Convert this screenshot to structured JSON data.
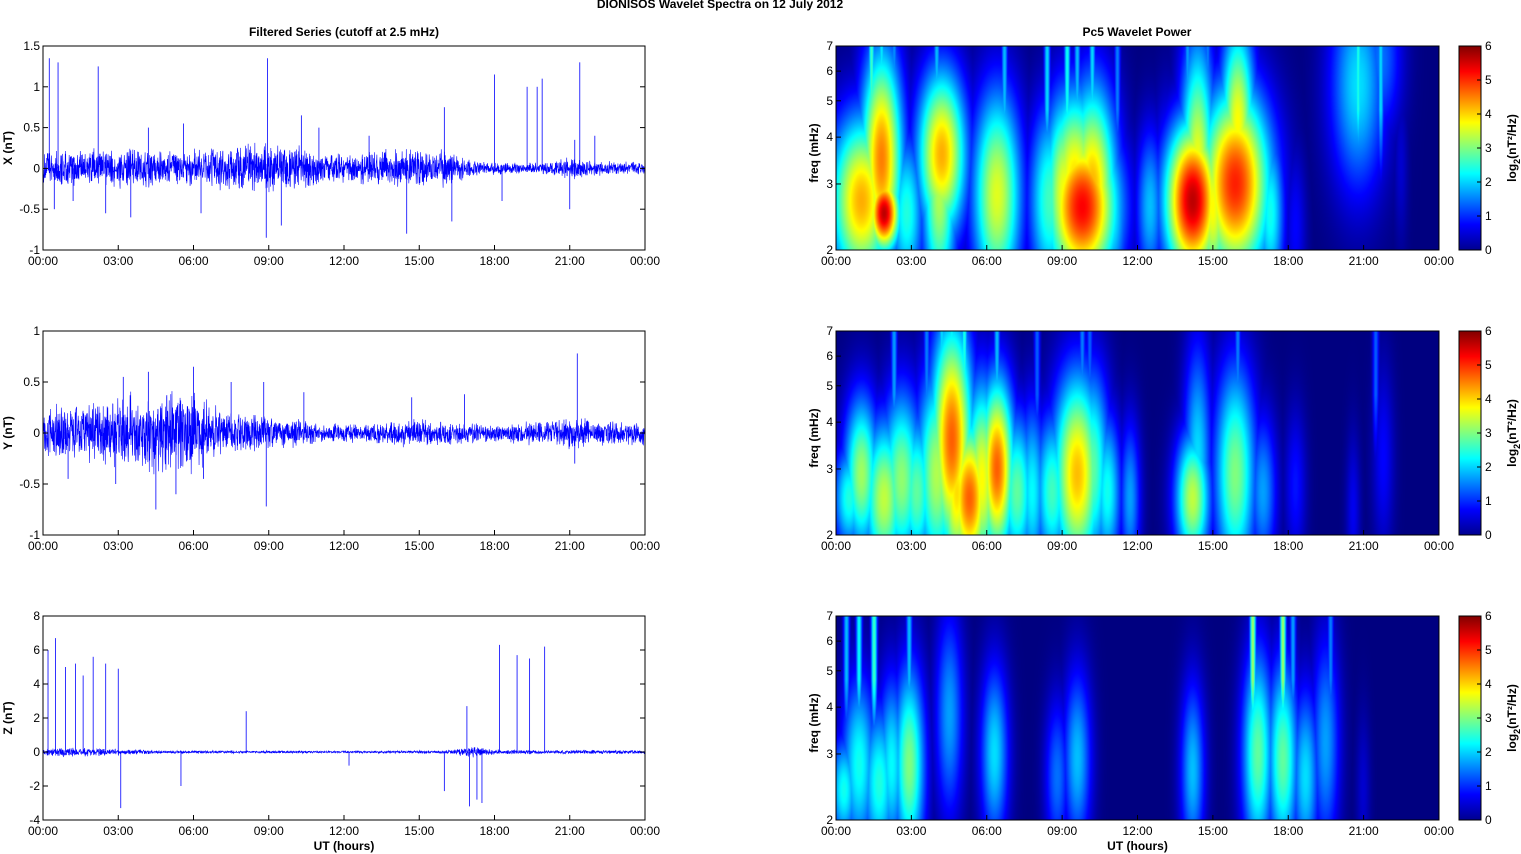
{
  "figure_title": "DIONISOS Wavelet Spectra on 12 July      2012",
  "left_column_title": "Filtered Series (cutoff at 2.5 mHz)",
  "right_column_title": "Pc5 Wavelet Power",
  "colors": {
    "trace": "#0000ff",
    "spectrum_background": "#00008f"
  },
  "chart_data": [
    {
      "type": "line",
      "title": "Filtered Series (cutoff at 2.5 mHz)",
      "xlabel": "",
      "ylabel": "X (nT)",
      "xlim": [
        "00:00",
        "00:00"
      ],
      "ylim": [
        -1,
        1.5
      ],
      "x_ticks": [
        "00:00",
        "03:00",
        "06:00",
        "09:00",
        "12:00",
        "15:00",
        "18:00",
        "21:00",
        "00:00"
      ],
      "y_ticks": [
        "-1",
        "-0.5",
        "0",
        "0.5",
        "1",
        "1.5"
      ],
      "grid": false,
      "series": [
        {
          "noise_amplitude": [
            [
              0,
              0.18
            ],
            [
              3,
              0.22
            ],
            [
              6,
              0.2
            ],
            [
              9,
              0.28
            ],
            [
              12,
              0.15
            ],
            [
              14.5,
              0.22
            ],
            [
              16,
              0.2
            ],
            [
              17.5,
              0.07
            ],
            [
              20,
              0.06
            ],
            [
              21,
              0.12
            ],
            [
              22,
              0.08
            ],
            [
              24,
              0.06
            ]
          ],
          "spikes": [
            [
              0.25,
              1.35
            ],
            [
              0.45,
              -0.5
            ],
            [
              0.6,
              1.3
            ],
            [
              1.2,
              -0.4
            ],
            [
              2.2,
              1.25
            ],
            [
              2.5,
              -0.55
            ],
            [
              3.5,
              -0.6
            ],
            [
              4.2,
              0.5
            ],
            [
              5.6,
              0.55
            ],
            [
              6.3,
              -0.55
            ],
            [
              8.95,
              1.35
            ],
            [
              8.9,
              -0.85
            ],
            [
              9.5,
              -0.7
            ],
            [
              10.3,
              0.65
            ],
            [
              11,
              0.5
            ],
            [
              13,
              0.4
            ],
            [
              14.5,
              -0.8
            ],
            [
              16,
              0.75
            ],
            [
              16.3,
              -0.65
            ],
            [
              18,
              1.15
            ],
            [
              18.3,
              -0.4
            ],
            [
              19.3,
              1.0
            ],
            [
              19.7,
              1.0
            ],
            [
              19.9,
              1.1
            ],
            [
              21.0,
              -0.5
            ],
            [
              21.4,
              1.3
            ],
            [
              21.2,
              0.35
            ],
            [
              22.0,
              0.4
            ]
          ]
        }
      ]
    },
    {
      "type": "heatmap",
      "title": "Pc5 Wavelet Power",
      "xlabel": "",
      "ylabel": "freq (mHz)",
      "colorbar_label": "log2(nT²/Hz)",
      "xlim": [
        "00:00",
        "00:00"
      ],
      "ylim": [
        2,
        7
      ],
      "y_scale": "log",
      "clim": [
        0,
        6
      ],
      "x_ticks": [
        "00:00",
        "03:00",
        "06:00",
        "09:00",
        "12:00",
        "15:00",
        "18:00",
        "21:00",
        "00:00"
      ],
      "y_ticks": [
        "2",
        "3",
        "4",
        "5",
        "6",
        "7"
      ],
      "colorbar_ticks": [
        "0",
        "1",
        "2",
        "3",
        "4",
        "5",
        "6"
      ],
      "blobs": [
        [
          0.5,
          2.4,
          3.2,
          1.4,
          0.5
        ],
        [
          1.0,
          2.7,
          4.5,
          2.1,
          0.9
        ],
        [
          1.45,
          2.6,
          3.1,
          2.5,
          0.7
        ],
        [
          1.9,
          2.5,
          6.0,
          1.4,
          0.45
        ],
        [
          1.8,
          3.5,
          4.8,
          2.6,
          0.6
        ],
        [
          2.8,
          2.5,
          2.6,
          2.0,
          0.5
        ],
        [
          4.1,
          2.8,
          3.5,
          2.6,
          0.5
        ],
        [
          4.2,
          3.6,
          4.5,
          2.1,
          0.7
        ],
        [
          6.4,
          2.8,
          3.8,
          2.5,
          0.7
        ],
        [
          7.0,
          2.4,
          1.3,
          2.0,
          0.45
        ],
        [
          8.5,
          2.7,
          2.8,
          2.3,
          0.6
        ],
        [
          9.1,
          2.8,
          4.0,
          2.4,
          0.6
        ],
        [
          9.5,
          3.1,
          4.2,
          2.2,
          0.8
        ],
        [
          9.8,
          2.6,
          5.6,
          2.0,
          1.0
        ],
        [
          10.2,
          2.9,
          4.5,
          2.5,
          0.7
        ],
        [
          10.9,
          2.5,
          2.5,
          2.0,
          0.5
        ],
        [
          12.5,
          2.6,
          2.0,
          2.0,
          0.4
        ],
        [
          13.2,
          2.7,
          1.8,
          2.2,
          0.4
        ],
        [
          14.2,
          2.7,
          6.0,
          2.0,
          0.8
        ],
        [
          14.4,
          3.2,
          4.0,
          3.2,
          0.5
        ],
        [
          15.0,
          2.6,
          4.0,
          2.2,
          0.5
        ],
        [
          15.9,
          3.0,
          5.4,
          2.3,
          1.0
        ],
        [
          16.0,
          4.3,
          4.0,
          2.5,
          0.5
        ],
        [
          17.3,
          2.5,
          2.5,
          2.1,
          0.4
        ],
        [
          18.3,
          2.3,
          0.8,
          2.0,
          0.3
        ],
        [
          20.8,
          5.5,
          2.2,
          2.6,
          0.8
        ],
        [
          21.7,
          6.5,
          1.5,
          2.0,
          0.6
        ],
        [
          22.5,
          3.4,
          0.5,
          2.0,
          0.2
        ]
      ],
      "streaks": [
        [
          1.4,
          2.8
        ],
        [
          1.8,
          2.3
        ],
        [
          2.3,
          1.7
        ],
        [
          4.0,
          2.0
        ],
        [
          6.7,
          2.0
        ],
        [
          8.4,
          2.2
        ],
        [
          9.2,
          2.5
        ],
        [
          9.6,
          2.0
        ],
        [
          10.2,
          2.2
        ],
        [
          11.2,
          1.6
        ],
        [
          14.0,
          1.8
        ],
        [
          14.8,
          1.6
        ],
        [
          15.9,
          2.2
        ],
        [
          20.8,
          2.6
        ],
        [
          21.7,
          2.2
        ]
      ]
    },
    {
      "type": "line",
      "title": "",
      "xlabel": "",
      "ylabel": "Y (nT)",
      "xlim": [
        "00:00",
        "00:00"
      ],
      "ylim": [
        -1,
        1
      ],
      "x_ticks": [
        "00:00",
        "03:00",
        "06:00",
        "09:00",
        "12:00",
        "15:00",
        "18:00",
        "21:00",
        "00:00"
      ],
      "y_ticks": [
        "-1",
        "-0.5",
        "0",
        "0.5",
        "1"
      ],
      "grid": false,
      "series": [
        {
          "noise_amplitude": [
            [
              0,
              0.22
            ],
            [
              2,
              0.25
            ],
            [
              4,
              0.35
            ],
            [
              6,
              0.35
            ],
            [
              7,
              0.2
            ],
            [
              9,
              0.15
            ],
            [
              11,
              0.08
            ],
            [
              13,
              0.08
            ],
            [
              14.5,
              0.12
            ],
            [
              16,
              0.1
            ],
            [
              18,
              0.08
            ],
            [
              20,
              0.1
            ],
            [
              21,
              0.14
            ],
            [
              22,
              0.1
            ],
            [
              24,
              0.1
            ]
          ],
          "spikes": [
            [
              1.0,
              -0.45
            ],
            [
              2.9,
              -0.5
            ],
            [
              3.2,
              0.55
            ],
            [
              4.2,
              0.6
            ],
            [
              4.5,
              -0.75
            ],
            [
              5.3,
              -0.6
            ],
            [
              6.0,
              0.65
            ],
            [
              6.4,
              -0.45
            ],
            [
              7.5,
              0.5
            ],
            [
              8.8,
              0.5
            ],
            [
              8.9,
              -0.72
            ],
            [
              10.4,
              0.4
            ],
            [
              14.7,
              0.35
            ],
            [
              16.8,
              0.38
            ],
            [
              21.3,
              0.78
            ],
            [
              21.2,
              -0.3
            ]
          ]
        }
      ]
    },
    {
      "type": "heatmap",
      "title": "",
      "xlabel": "",
      "ylabel": "freq (mHz)",
      "colorbar_label": "log2(nT²/Hz)",
      "xlim": [
        "00:00",
        "00:00"
      ],
      "ylim": [
        2,
        7
      ],
      "y_scale": "log",
      "clim": [
        0,
        6
      ],
      "x_ticks": [
        "00:00",
        "03:00",
        "06:00",
        "09:00",
        "12:00",
        "15:00",
        "18:00",
        "21:00",
        "00:00"
      ],
      "y_ticks": [
        "2",
        "3",
        "4",
        "5",
        "6",
        "7"
      ],
      "colorbar_ticks": [
        "0",
        "1",
        "2",
        "3",
        "4",
        "5",
        "6"
      ],
      "blobs": [
        [
          0.5,
          2.5,
          2.6,
          1.6,
          0.45
        ],
        [
          1.0,
          2.9,
          3.4,
          2.0,
          0.5
        ],
        [
          1.9,
          2.5,
          3.6,
          2.0,
          0.6
        ],
        [
          2.6,
          2.8,
          3.3,
          2.2,
          0.6
        ],
        [
          3.2,
          2.6,
          3.0,
          2.0,
          0.5
        ],
        [
          4.0,
          2.9,
          3.5,
          2.5,
          0.6
        ],
        [
          4.6,
          3.6,
          5.0,
          2.8,
          0.6
        ],
        [
          4.8,
          2.6,
          4.2,
          2.2,
          0.5
        ],
        [
          5.3,
          2.5,
          5.0,
          2.0,
          0.6
        ],
        [
          5.8,
          2.8,
          4.0,
          2.4,
          0.5
        ],
        [
          6.4,
          3.0,
          5.0,
          2.2,
          0.5
        ],
        [
          7.2,
          2.6,
          3.0,
          2.0,
          0.5
        ],
        [
          7.8,
          2.6,
          2.4,
          2.2,
          0.4
        ],
        [
          8.6,
          2.6,
          2.8,
          2.0,
          0.5
        ],
        [
          9.6,
          2.9,
          4.4,
          2.4,
          0.7
        ],
        [
          10.2,
          3.0,
          3.0,
          2.4,
          0.5
        ],
        [
          10.8,
          2.6,
          2.5,
          2.0,
          0.4
        ],
        [
          11.7,
          2.5,
          1.8,
          2.0,
          0.3
        ],
        [
          14.2,
          2.5,
          3.6,
          1.8,
          0.5
        ],
        [
          14.4,
          3.2,
          2.2,
          2.8,
          0.4
        ],
        [
          15.9,
          2.9,
          3.2,
          2.6,
          0.6
        ],
        [
          17.0,
          2.6,
          1.8,
          2.0,
          0.4
        ],
        [
          18.3,
          2.7,
          0.9,
          2.0,
          0.3
        ],
        [
          20.6,
          2.3,
          0.7,
          2.0,
          0.2
        ],
        [
          21.8,
          3.2,
          0.8,
          2.3,
          0.3
        ]
      ],
      "streaks": [
        [
          2.3,
          1.8
        ],
        [
          3.6,
          1.6
        ],
        [
          4.2,
          2.2
        ],
        [
          4.6,
          2.4
        ],
        [
          5.1,
          2.6
        ],
        [
          6.4,
          2.0
        ],
        [
          8.0,
          1.4
        ],
        [
          9.8,
          1.6
        ],
        [
          10.1,
          1.4
        ],
        [
          16.0,
          1.6
        ],
        [
          21.5,
          1.4
        ]
      ]
    },
    {
      "type": "line",
      "title": "",
      "xlabel": "UT (hours)",
      "ylabel": "Z (nT)",
      "xlim": [
        "00:00",
        "00:00"
      ],
      "ylim": [
        -4,
        8
      ],
      "x_ticks": [
        "00:00",
        "03:00",
        "06:00",
        "09:00",
        "12:00",
        "15:00",
        "18:00",
        "21:00",
        "00:00"
      ],
      "y_ticks": [
        "-4",
        "-2",
        "0",
        "2",
        "4",
        "6",
        "8"
      ],
      "grid": false,
      "series": [
        {
          "noise_amplitude": [
            [
              0,
              0.2
            ],
            [
              1,
              0.25
            ],
            [
              3,
              0.15
            ],
            [
              5,
              0.08
            ],
            [
              12,
              0.06
            ],
            [
              16,
              0.08
            ],
            [
              17.2,
              0.3
            ],
            [
              18,
              0.12
            ],
            [
              20,
              0.1
            ],
            [
              24,
              0.1
            ]
          ],
          "spikes": [
            [
              0.2,
              6.0
            ],
            [
              0.5,
              6.7
            ],
            [
              0.9,
              5.0
            ],
            [
              1.3,
              5.2
            ],
            [
              1.6,
              4.5
            ],
            [
              2.0,
              5.6
            ],
            [
              2.5,
              5.2
            ],
            [
              3.0,
              4.9
            ],
            [
              3.1,
              -3.3
            ],
            [
              5.5,
              -2.0
            ],
            [
              8.1,
              2.4
            ],
            [
              12.2,
              -0.8
            ],
            [
              16.0,
              -2.3
            ],
            [
              16.9,
              2.7
            ],
            [
              17.0,
              -3.2
            ],
            [
              17.3,
              -2.8
            ],
            [
              17.5,
              -3.0
            ],
            [
              18.2,
              6.3
            ],
            [
              18.9,
              5.7
            ],
            [
              19.4,
              5.5
            ],
            [
              20.0,
              6.2
            ]
          ]
        }
      ]
    },
    {
      "type": "heatmap",
      "title": "",
      "xlabel": "UT (hours)",
      "ylabel": "freq (mHz)",
      "colorbar_label": "log2(nT²/Hz)",
      "xlim": [
        "00:00",
        "00:00"
      ],
      "ylim": [
        2,
        7
      ],
      "y_scale": "log",
      "clim": [
        0,
        6
      ],
      "x_ticks": [
        "00:00",
        "03:00",
        "06:00",
        "09:00",
        "12:00",
        "15:00",
        "18:00",
        "21:00",
        "00:00"
      ],
      "y_ticks": [
        "2",
        "3",
        "4",
        "5",
        "6",
        "7"
      ],
      "colorbar_ticks": [
        "0",
        "1",
        "2",
        "3",
        "4",
        "5",
        "6"
      ],
      "blobs": [
        [
          0.3,
          2.4,
          2.5,
          1.6,
          0.4
        ],
        [
          0.9,
          2.8,
          2.5,
          2.2,
          0.5
        ],
        [
          1.7,
          2.5,
          2.6,
          2.0,
          0.5
        ],
        [
          2.2,
          2.8,
          2.4,
          2.2,
          0.4
        ],
        [
          2.9,
          2.8,
          3.2,
          2.4,
          0.45
        ],
        [
          4.5,
          3.8,
          1.8,
          2.5,
          0.4
        ],
        [
          6.3,
          3.0,
          2.2,
          2.2,
          0.4
        ],
        [
          8.8,
          2.6,
          1.5,
          2.0,
          0.35
        ],
        [
          9.6,
          2.9,
          2.0,
          2.2,
          0.4
        ],
        [
          14.2,
          2.7,
          2.0,
          2.2,
          0.35
        ],
        [
          16.8,
          3.0,
          3.0,
          2.5,
          0.45
        ],
        [
          17.8,
          2.9,
          3.0,
          2.4,
          0.45
        ],
        [
          18.7,
          2.6,
          2.2,
          2.2,
          0.4
        ],
        [
          19.5,
          3.2,
          1.8,
          2.6,
          0.4
        ],
        [
          21.0,
          2.4,
          0.5,
          2.0,
          0.2
        ]
      ],
      "streaks": [
        [
          0.4,
          2.0
        ],
        [
          0.9,
          2.4
        ],
        [
          1.5,
          2.8
        ],
        [
          2.9,
          2.0
        ],
        [
          16.6,
          3.4
        ],
        [
          17.8,
          3.4
        ],
        [
          18.2,
          1.8
        ],
        [
          19.7,
          1.6
        ]
      ]
    }
  ]
}
